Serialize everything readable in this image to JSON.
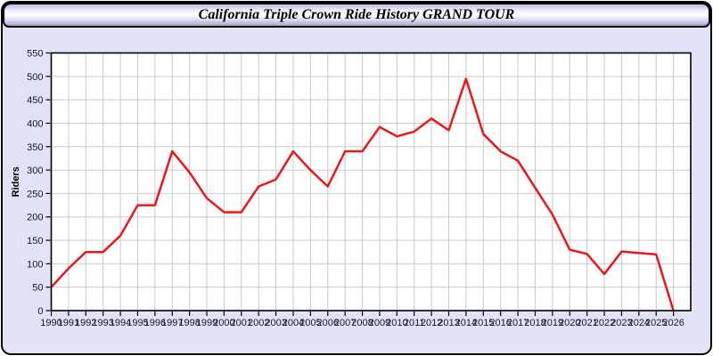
{
  "title_bar": {
    "text": "California Triple Crown Ride History GRAND TOUR"
  },
  "chart_data": {
    "type": "line",
    "title": "California Triple Crown Ride History GRAND TOUR",
    "xlabel": "",
    "ylabel": "Riders",
    "x": [
      1990,
      1991,
      1992,
      1993,
      1994,
      1995,
      1996,
      1997,
      1998,
      1999,
      2000,
      2001,
      2002,
      2003,
      2004,
      2005,
      2006,
      2007,
      2008,
      2009,
      2010,
      2011,
      2012,
      2013,
      2014,
      2015,
      2016,
      2017,
      2018,
      2019,
      2020,
      2021,
      2022,
      2023,
      2024,
      2025,
      2026
    ],
    "values": [
      50,
      90,
      125,
      125,
      160,
      225,
      225,
      340,
      295,
      240,
      210,
      210,
      265,
      280,
      340,
      300,
      265,
      340,
      340,
      392,
      372,
      382,
      410,
      385,
      495,
      377,
      340,
      320,
      262,
      205,
      130,
      121,
      78,
      126,
      123,
      120,
      0
    ],
    "ylim": [
      0,
      550
    ],
    "ytick_step": 50,
    "xlim": [
      1990,
      2027
    ],
    "grid": true,
    "legend": "none"
  },
  "colors": {
    "line": "#ed1515",
    "panel_bg": "#e2e2f6",
    "plot_bg": "#ffffff",
    "grid": "#c9c9c9",
    "border": "#000000",
    "tick_label": "#14142e",
    "axis_title": "#000000"
  }
}
